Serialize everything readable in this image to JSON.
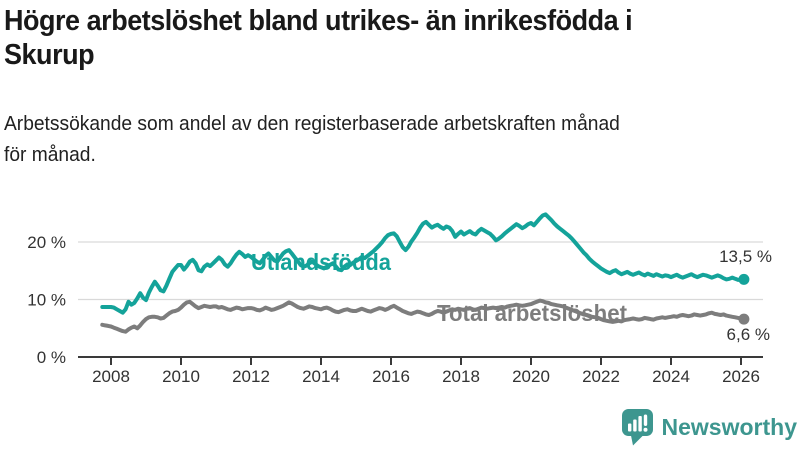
{
  "header": {
    "title": "Högre arbetslöshet bland utrikes- än inrikesfödda i Skurup",
    "title_lines": [
      "Högre arbetslöshet bland utrikes- än inrikesfödda i",
      "Skurup"
    ],
    "subtitle": "Arbetssökande som andel av den registerbaserade arbetskraften månad för månad.",
    "subtitle_lines": [
      "Arbetssökande som andel av den registerbaserade arbetskraften månad",
      "för månad."
    ]
  },
  "chart_data": {
    "type": "line",
    "title": "Högre arbetslöshet bland utrikes- än inrikesfödda i Skurup",
    "subtitle": "Arbetssökande som andel av den registerbaserade arbetskraften månad för månad.",
    "unit": "%",
    "frequency": "monthly",
    "x_start": "2007-10",
    "x_end": "2026-02",
    "ylim": [
      0,
      26
    ],
    "grid": "horizontal",
    "legend": "inline-labels",
    "yticks": [
      {
        "label": "0 %",
        "value": 0
      },
      {
        "label": "10 %",
        "value": 10
      },
      {
        "label": "20 %",
        "value": 20
      }
    ],
    "xticks": [
      2008,
      2010,
      2012,
      2014,
      2016,
      2018,
      2020,
      2022,
      2024,
      2026
    ],
    "series": [
      {
        "name": "Utlandsfödda",
        "color": "#14a39a",
        "end_label": "13,5 %",
        "last_value": 13.5,
        "values": [
          8.7,
          8.7,
          8.7,
          8.7,
          8.6,
          8.3,
          8.0,
          7.7,
          8.3,
          9.6,
          9.1,
          9.4,
          10.2,
          11.1,
          10.3,
          9.9,
          11.2,
          12.2,
          13.1,
          12.4,
          11.6,
          11.4,
          12.4,
          13.6,
          14.8,
          15.4,
          16.0,
          16.0,
          15.2,
          15.8,
          16.6,
          16.9,
          16.3,
          15.1,
          14.9,
          15.7,
          16.1,
          15.8,
          16.3,
          16.8,
          17.3,
          16.9,
          16.1,
          15.7,
          16.3,
          17.1,
          17.8,
          18.3,
          17.9,
          17.4,
          17.7,
          17.4,
          17.0,
          16.6,
          16.3,
          16.9,
          17.6,
          18.0,
          17.4,
          16.8,
          16.6,
          17.3,
          18.0,
          18.4,
          18.6,
          18.0,
          17.3,
          16.7,
          16.0,
          15.7,
          15.9,
          16.3,
          16.6,
          16.2,
          15.8,
          15.6,
          15.4,
          15.7,
          16.0,
          16.3,
          15.8,
          15.2,
          15.1,
          15.7,
          16.1,
          16.0,
          16.4,
          16.7,
          17.0,
          17.4,
          17.2,
          17.6,
          18.0,
          18.4,
          18.9,
          19.4,
          20.0,
          20.7,
          21.2,
          21.4,
          21.5,
          21.0,
          20.0,
          19.1,
          18.6,
          19.2,
          20.1,
          20.8,
          21.6,
          22.5,
          23.2,
          23.5,
          23.0,
          22.5,
          22.8,
          23.0,
          22.6,
          22.3,
          22.7,
          22.5,
          21.9,
          20.9,
          21.4,
          21.8,
          21.3,
          21.6,
          21.9,
          21.5,
          21.3,
          21.9,
          22.3,
          22.0,
          21.7,
          21.4,
          20.9,
          20.3,
          20.6,
          21.0,
          21.5,
          21.9,
          22.3,
          22.7,
          23.1,
          22.8,
          22.4,
          22.7,
          23.1,
          23.3,
          22.9,
          23.5,
          24.1,
          24.6,
          24.8,
          24.3,
          23.8,
          23.2,
          22.7,
          22.3,
          21.9,
          21.5,
          21.1,
          20.6,
          20.0,
          19.4,
          18.8,
          18.2,
          17.7,
          17.1,
          16.6,
          16.2,
          15.8,
          15.4,
          15.1,
          14.8,
          14.6,
          14.9,
          15.1,
          14.7,
          14.4,
          14.6,
          14.8,
          14.5,
          14.3,
          14.5,
          14.7,
          14.4,
          14.2,
          14.5,
          14.3,
          14.1,
          14.4,
          14.2,
          14.0,
          14.2,
          14.1,
          13.9,
          14.1,
          14.3,
          14.0,
          13.8,
          14.0,
          14.2,
          14.4,
          14.1,
          13.9,
          14.1,
          14.3,
          14.2,
          14.0,
          13.8,
          14.0,
          14.2,
          14.0,
          13.7,
          13.5,
          13.6,
          13.8,
          13.6,
          13.4,
          13.4,
          13.5
        ]
      },
      {
        "name": "Total arbetslöshet",
        "color": "#7d7d7d",
        "end_label": "6,6 %",
        "last_value": 6.6,
        "values": [
          5.6,
          5.5,
          5.4,
          5.3,
          5.1,
          4.9,
          4.7,
          4.5,
          4.4,
          4.8,
          5.1,
          5.3,
          5.0,
          5.5,
          6.1,
          6.6,
          6.9,
          7.0,
          7.0,
          6.9,
          6.7,
          6.8,
          7.2,
          7.6,
          7.9,
          8.0,
          8.2,
          8.6,
          9.1,
          9.5,
          9.6,
          9.2,
          8.8,
          8.5,
          8.7,
          8.9,
          8.8,
          8.7,
          8.8,
          8.8,
          8.6,
          8.7,
          8.5,
          8.3,
          8.2,
          8.4,
          8.6,
          8.5,
          8.3,
          8.4,
          8.5,
          8.5,
          8.4,
          8.2,
          8.1,
          8.3,
          8.6,
          8.4,
          8.2,
          8.3,
          8.5,
          8.7,
          8.9,
          9.2,
          9.5,
          9.3,
          9.0,
          8.7,
          8.5,
          8.4,
          8.6,
          8.8,
          8.7,
          8.5,
          8.4,
          8.3,
          8.5,
          8.6,
          8.4,
          8.1,
          7.9,
          7.8,
          8.0,
          8.2,
          8.3,
          8.1,
          8.0,
          8.0,
          8.2,
          8.4,
          8.2,
          8.0,
          7.9,
          8.1,
          8.3,
          8.5,
          8.4,
          8.2,
          8.4,
          8.7,
          8.9,
          8.6,
          8.3,
          8.0,
          7.8,
          7.6,
          7.5,
          7.7,
          7.9,
          7.8,
          7.6,
          7.4,
          7.3,
          7.5,
          7.8,
          8.0,
          7.9,
          7.7,
          7.9,
          8.1,
          8.3,
          8.2,
          8.4,
          8.3,
          8.2,
          8.4,
          8.5,
          8.3,
          8.2,
          8.4,
          8.6,
          8.5,
          8.4,
          8.5,
          8.6,
          8.5,
          8.6,
          8.7,
          8.6,
          8.8,
          8.9,
          9.0,
          9.1,
          9.0,
          8.9,
          9.0,
          9.1,
          9.2,
          9.4,
          9.6,
          9.8,
          9.7,
          9.5,
          9.4,
          9.2,
          9.1,
          9.0,
          8.9,
          8.8,
          8.6,
          8.4,
          8.2,
          8.0,
          7.8,
          7.6,
          7.4,
          7.3,
          7.1,
          7.0,
          6.9,
          6.8,
          6.6,
          6.4,
          6.3,
          6.2,
          6.1,
          6.2,
          6.3,
          6.2,
          6.4,
          6.5,
          6.6,
          6.7,
          6.6,
          6.5,
          6.6,
          6.8,
          6.7,
          6.6,
          6.5,
          6.7,
          6.8,
          6.9,
          6.8,
          6.9,
          7.0,
          7.1,
          7.0,
          7.2,
          7.3,
          7.2,
          7.1,
          7.2,
          7.4,
          7.3,
          7.2,
          7.3,
          7.4,
          7.6,
          7.7,
          7.5,
          7.4,
          7.3,
          7.4,
          7.2,
          7.1,
          7.0,
          6.9,
          6.8,
          6.7,
          6.6
        ]
      }
    ]
  },
  "footer": {
    "brand": "Newsworthy"
  },
  "colors": {
    "series_foreign_born": "#14a39a",
    "series_total": "#7d7d7d",
    "text": "#1a1a1a",
    "axis": "#3a3a3a",
    "grid": "#d9d9d9",
    "brand": "#3d968f",
    "background": "#ffffff"
  }
}
